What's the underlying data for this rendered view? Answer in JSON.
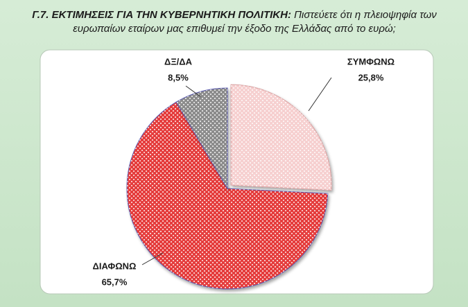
{
  "chart_data": {
    "type": "pie",
    "title": "Γ.7. ΕΚΤΙΜΗΣΕΙΣ ΓΙΑ ΤΗΝ ΚΥΒΕΡΝΗΤΙΚΗ ΠΟΛΙΤΙΚΗ:",
    "subtitle": "Πιστεύετε ότι η πλειοψηφία των ευρωπαίων εταίρων μας επιθυμεί την έξοδο της Ελλάδας από το ευρώ;",
    "categories": [
      "ΣΥΜΦΩΝΩ",
      "ΔΙΑΦΩΝΩ",
      "ΔΞ/ΔΑ"
    ],
    "values": [
      25.8,
      65.7,
      8.5
    ],
    "value_labels": [
      "25,8%",
      "65,7%",
      "8,5%"
    ],
    "colors": [
      "#f6d0d0",
      "#e53c3c",
      "#8c8c8c"
    ]
  }
}
